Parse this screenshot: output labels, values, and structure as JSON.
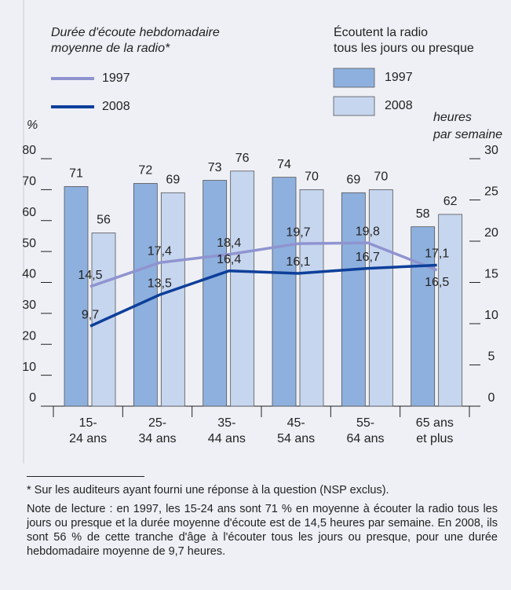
{
  "chart_data": {
    "type": "bar",
    "line_legend_title": [
      "Durée d'écoute hebdomadaire",
      "moyenne de la radio*"
    ],
    "bar_legend_title": [
      "Écoutent la radio",
      "tous les jours ou presque"
    ],
    "y_label": "%",
    "y2_label": [
      "heures",
      "par semaine"
    ],
    "categories": [
      [
        "15-",
        "24 ans"
      ],
      [
        "25-",
        "34 ans"
      ],
      [
        "35-",
        "44 ans"
      ],
      [
        "45-",
        "54 ans"
      ],
      [
        "55-",
        "64 ans"
      ],
      [
        "65 ans",
        "et plus"
      ]
    ],
    "series": [
      {
        "name": "1997",
        "type": "bar",
        "color": "#8eb0de",
        "values": [
          71,
          72,
          73,
          74,
          69,
          58
        ]
      },
      {
        "name": "2008",
        "type": "bar",
        "color": "#c6d6ef",
        "values": [
          56,
          69,
          76,
          70,
          70,
          62
        ]
      },
      {
        "name": "1997",
        "type": "line",
        "axis": "y2",
        "color": "#8f94d0",
        "values": [
          14.5,
          17.4,
          18.4,
          19.7,
          19.8,
          16.5
        ],
        "value_labels": [
          "14,5",
          "17,4",
          "18,4",
          "19,7",
          "19,8",
          "16,5"
        ]
      },
      {
        "name": "2008",
        "type": "line",
        "axis": "y2",
        "color": "#0d3f9a",
        "values": [
          9.7,
          13.5,
          16.4,
          16.1,
          16.7,
          17.1
        ],
        "value_labels": [
          "9,7",
          "13,5",
          "16,4",
          "16,1",
          "16,7",
          "17,1"
        ]
      }
    ],
    "ylim": [
      0,
      80
    ],
    "yticks": [
      0,
      10,
      20,
      30,
      40,
      50,
      60,
      70,
      80
    ],
    "y2lim": [
      0,
      30
    ],
    "y2ticks": [
      0,
      5,
      10,
      15,
      20,
      25,
      30
    ]
  },
  "footnote": "* Sur les auditeurs ayant fourni une réponse à la question (NSP exclus).",
  "note": "Note de lecture : en 1997, les 15-24 ans sont 71 % en moyenne à écouter la radio tous les jours ou presque et la durée moyenne d'écoute est de 14,5 heures par semaine. En 2008, ils sont 56 % de cette tranche d'âge à l'écouter tous les jours ou presque, pour une durée hebdomadaire moyenne de 9,7 heures."
}
